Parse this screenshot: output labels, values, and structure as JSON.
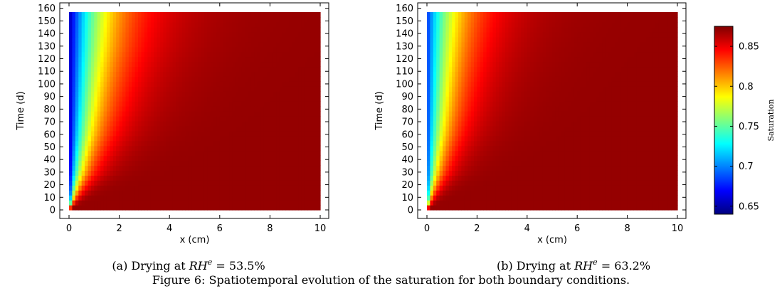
{
  "colors": [
    "#00007f",
    "#0000ff",
    "#007fff",
    "#00ffff",
    "#7fff7f",
    "#ffff00",
    "#ff7f00",
    "#ff0000",
    "#7f0000"
  ],
  "panels": [
    {
      "xlabel": "x (cm)",
      "ylabel": "Time (d)",
      "caption": {
        "prefix": "(a) Drying at ",
        "var": "RH",
        "sup": "e",
        "rest": " = 53.5%"
      },
      "chart_data": {
        "type": "heatmap",
        "title": "",
        "xlabel": "x (cm)",
        "ylabel": "Time (d)",
        "x_ticks": [
          0,
          2,
          4,
          6,
          8,
          10
        ],
        "y_ticks": [
          0,
          10,
          20,
          30,
          40,
          50,
          60,
          70,
          80,
          90,
          100,
          110,
          120,
          130,
          140,
          150,
          160
        ],
        "xlim": [
          0,
          10
        ],
        "ylim": [
          0,
          157
        ],
        "colormap": "jet",
        "zlim": [
          0.64,
          0.87
        ],
        "surface_saturation": 0.65,
        "initial_saturation": 0.87,
        "front_contours": [
          {
            "saturation": 0.8,
            "points": [
              [
                0,
                0
              ],
              [
                0.2,
                10
              ],
              [
                0.4,
                20
              ],
              [
                0.6,
                30
              ],
              [
                0.8,
                45
              ],
              [
                1.0,
                60
              ],
              [
                1.2,
                80
              ],
              [
                1.4,
                105
              ],
              [
                1.6,
                130
              ],
              [
                1.75,
                157
              ]
            ]
          }
        ]
      }
    },
    {
      "xlabel": "x (cm)",
      "ylabel": "Time (d)",
      "caption": {
        "prefix": "(b) Drying at ",
        "var": "RH",
        "sup": "e",
        "rest": " = 63.2%"
      },
      "chart_data": {
        "type": "heatmap",
        "title": "",
        "xlabel": "x (cm)",
        "ylabel": "Time (d)",
        "x_ticks": [
          0,
          2,
          4,
          6,
          8,
          10
        ],
        "y_ticks": [
          0,
          10,
          20,
          30,
          40,
          50,
          60,
          70,
          80,
          90,
          100,
          110,
          120,
          130,
          140,
          150,
          160
        ],
        "xlim": [
          0,
          10
        ],
        "ylim": [
          0,
          157
        ],
        "colormap": "jet",
        "zlim": [
          0.64,
          0.87
        ],
        "surface_saturation": 0.68,
        "initial_saturation": 0.87,
        "front_contours": [
          {
            "saturation": 0.8,
            "points": [
              [
                0,
                0
              ],
              [
                0.15,
                10
              ],
              [
                0.3,
                20
              ],
              [
                0.45,
                30
              ],
              [
                0.6,
                45
              ],
              [
                0.75,
                60
              ],
              [
                0.9,
                80
              ],
              [
                1.05,
                105
              ],
              [
                1.2,
                130
              ],
              [
                1.35,
                157
              ]
            ]
          }
        ]
      }
    }
  ],
  "colorbar": {
    "label": "Saturation",
    "ticks": [
      0.65,
      0.7,
      0.75,
      0.8,
      0.85
    ],
    "tick_labels": [
      "0.65",
      "0.7",
      "0.75",
      "0.8",
      "0.85"
    ],
    "min": 0.64,
    "max": 0.875
  },
  "figure_caption": "Figure 6: Spatiotemporal evolution of the saturation for both boundary conditions."
}
